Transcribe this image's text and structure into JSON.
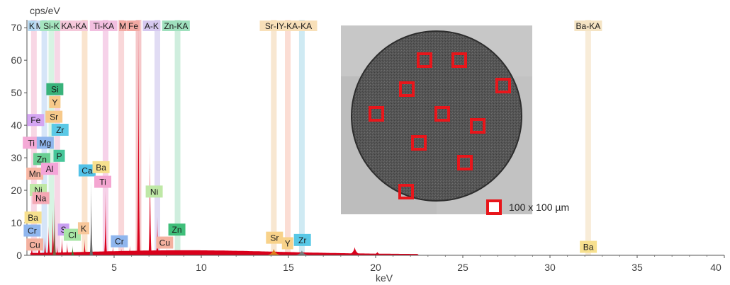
{
  "chart_data": {
    "type": "area",
    "ylabel": "cps/eV",
    "xlabel": "keV",
    "xlim": [
      0,
      40
    ],
    "ylim": [
      0,
      72
    ],
    "x_ticks": [
      5,
      10,
      15,
      20,
      25,
      30,
      35,
      40
    ],
    "y_ticks": [
      0,
      10,
      20,
      30,
      40,
      50,
      60,
      70
    ],
    "grid": false,
    "series_color": "#d9001b",
    "peaks": [
      {
        "keV": 0.28,
        "height": 3.0,
        "color": "#d9001b"
      },
      {
        "keV": 0.7,
        "height": 6.0,
        "color": "#d9001b"
      },
      {
        "keV": 1.04,
        "height": 5.5,
        "color": "#d9001b"
      },
      {
        "keV": 1.25,
        "height": 9.0,
        "color": "#d9001b"
      },
      {
        "keV": 1.49,
        "height": 14.0,
        "color": "#d9001b"
      },
      {
        "keV": 1.58,
        "height": 18.0,
        "color": "#7a5c3c"
      },
      {
        "keV": 1.74,
        "height": 3.0,
        "color": "#d9001b"
      },
      {
        "keV": 2.01,
        "height": 6.0,
        "color": "#d9001b"
      },
      {
        "keV": 2.31,
        "height": 4.0,
        "color": "#d9001b"
      },
      {
        "keV": 2.62,
        "height": 3.0,
        "color": "#3a7d2c"
      },
      {
        "keV": 3.31,
        "height": 5.0,
        "color": "#d9001b"
      },
      {
        "keV": 3.69,
        "height": 23.0,
        "color": "#6b6b6b"
      },
      {
        "keV": 4.47,
        "height": 2.0,
        "color": "#d9001b"
      },
      {
        "keV": 4.51,
        "height": 20.0,
        "color": "#d9001b"
      },
      {
        "keV": 4.93,
        "height": 3.0,
        "color": "#d9001b"
      },
      {
        "keV": 5.41,
        "height": 2.0,
        "color": "#d9001b"
      },
      {
        "keV": 5.9,
        "height": 3.0,
        "color": "#d9001b"
      },
      {
        "keV": 6.4,
        "height": 72.0,
        "color": "#d9001b"
      },
      {
        "keV": 7.06,
        "height": 35.0,
        "color": "#d9001b"
      },
      {
        "keV": 7.48,
        "height": 12.0,
        "color": "#d9001b"
      },
      {
        "keV": 8.04,
        "height": 2.0,
        "color": "#d9001b"
      },
      {
        "keV": 8.64,
        "height": 1.5,
        "color": "#d9001b"
      },
      {
        "keV": 12.9,
        "height": 0.5,
        "color": "#d9001b"
      },
      {
        "keV": 14.16,
        "height": 2.0,
        "color": "#e07b1a"
      },
      {
        "keV": 15.77,
        "height": 1.5,
        "color": "#7a7a7a"
      },
      {
        "keV": 18.8,
        "height": 2.5,
        "color": "#d9001b"
      },
      {
        "keV": 20.1,
        "height": 1.0,
        "color": "#d9001b"
      }
    ],
    "element_lines": [
      {
        "label": "K",
        "keV": 0.4,
        "color": "#f6c9dc"
      },
      {
        "label": "Mg",
        "keV": 1.0,
        "color": "#c8dcf5"
      },
      {
        "label": "Si-KA",
        "keV": 1.4,
        "color": "#c9f0d9"
      },
      {
        "label": "Si-KA-KA",
        "keV": 1.74,
        "color": "#f4c9de"
      },
      {
        "label": "K-KA",
        "keV": 3.31,
        "color": "#f8dbbd"
      },
      {
        "label": "Ti-KA",
        "keV": 4.51,
        "color": "#f3c3e2"
      },
      {
        "label": "M",
        "keV": 5.41,
        "color": "#f7c9cc"
      },
      {
        "label": "Fe",
        "keV": 6.4,
        "color": "#f2b4b7"
      },
      {
        "label": "A-K",
        "keV": 7.48,
        "color": "#d7d0f0"
      },
      {
        "label": "Zn-KA",
        "keV": 8.64,
        "color": "#bfe8d3"
      },
      {
        "label": "Sr-I",
        "keV": 14.16,
        "color": "#f6dfc2"
      },
      {
        "label": "Y-KA",
        "keV": 14.96,
        "color": "#f9d2c5"
      },
      {
        "label": "-KA",
        "keV": 15.77,
        "color": "#bfe3ef"
      },
      {
        "label": "Ba-KA",
        "keV": 32.19,
        "color": "#f5e6cb"
      }
    ],
    "top_labels": [
      {
        "text": "K",
        "keV": 0.28,
        "bg": "#b4d7f0"
      },
      {
        "text": "Mg",
        "keV": 0.85,
        "bg": "#c7dbf3"
      },
      {
        "text": "Si-K",
        "keV": 1.4,
        "bg": "#a6e6c0"
      },
      {
        "text": "KA-KA",
        "keV": 2.7,
        "bg": "#f5c8da"
      },
      {
        "text": "Ti-KA",
        "keV": 4.4,
        "bg": "#f2bfe0"
      },
      {
        "text": "M",
        "keV": 5.5,
        "bg": "#f3a9a3"
      },
      {
        "text": "Fe",
        "keV": 6.1,
        "bg": "#f3a9a3"
      },
      {
        "text": "A-K",
        "keV": 7.15,
        "bg": "#d5c7ef"
      },
      {
        "text": "Zn-KA",
        "keV": 8.55,
        "bg": "#9fe0bd"
      },
      {
        "text": "Sr-IY-KA-KA",
        "keV": 15.0,
        "bg": "#f8e0b9"
      },
      {
        "text": "Ba-KA",
        "keV": 32.19,
        "bg": "#f5e4c4"
      }
    ],
    "element_tags": [
      {
        "text": "Si",
        "keV": 1.6,
        "y": 51,
        "bg": "#38b27a"
      },
      {
        "text": "Y",
        "keV": 1.6,
        "y": 47,
        "bg": "#f7c98a"
      },
      {
        "text": "Sr",
        "keV": 1.55,
        "y": 42.5,
        "bg": "#f7c98a"
      },
      {
        "text": "Fe",
        "keV": 0.5,
        "y": 41.5,
        "bg": "#d5a6f2"
      },
      {
        "text": "Zr",
        "keV": 1.9,
        "y": 38.5,
        "bg": "#5cc9e6"
      },
      {
        "text": "Ti",
        "keV": 0.25,
        "y": 34.5,
        "bg": "#f4a9d6"
      },
      {
        "text": "Mg",
        "keV": 1.05,
        "y": 34.5,
        "bg": "#8fb6ee"
      },
      {
        "text": "Zn",
        "keV": 0.85,
        "y": 29.5,
        "bg": "#69cf93"
      },
      {
        "text": "P",
        "keV": 1.85,
        "y": 30.5,
        "bg": "#45c699"
      },
      {
        "text": "Mn",
        "keV": 0.45,
        "y": 25.0,
        "bg": "#f8b7a4"
      },
      {
        "text": "Al",
        "keV": 1.3,
        "y": 26.5,
        "bg": "#f4a4d8"
      },
      {
        "text": "Ca",
        "keV": 3.45,
        "y": 26.0,
        "bg": "#52c2e8"
      },
      {
        "text": "Ba",
        "keV": 4.25,
        "y": 27.0,
        "bg": "#f7e08e"
      },
      {
        "text": "Ti",
        "keV": 4.35,
        "y": 22.5,
        "bg": "#f4a6d1"
      },
      {
        "text": "Ni",
        "keV": 0.65,
        "y": 20.0,
        "bg": "#bfe8a6"
      },
      {
        "text": "Na",
        "keV": 0.8,
        "y": 17.5,
        "bg": "#f5a8b4"
      },
      {
        "text": "Ni",
        "keV": 7.3,
        "y": 19.5,
        "bg": "#bfe8a6"
      },
      {
        "text": "Ba",
        "keV": 0.35,
        "y": 11.5,
        "bg": "#f7e08e"
      },
      {
        "text": "Cr",
        "keV": 0.3,
        "y": 7.5,
        "bg": "#8fb6ee"
      },
      {
        "text": "S",
        "keV": 2.1,
        "y": 7.8,
        "bg": "#c99ff2"
      },
      {
        "text": "Cl",
        "keV": 2.6,
        "y": 6.2,
        "bg": "#a8e6a6"
      },
      {
        "text": "K",
        "keV": 3.25,
        "y": 8.2,
        "bg": "#f8c79a"
      },
      {
        "text": "Cr",
        "keV": 5.3,
        "y": 4.2,
        "bg": "#8fb6ee"
      },
      {
        "text": "Zn",
        "keV": 8.6,
        "y": 7.8,
        "bg": "#3fbf7a"
      },
      {
        "text": "Cu",
        "keV": 0.45,
        "y": 3.2,
        "bg": "#f4b19f"
      },
      {
        "text": "Cu",
        "keV": 7.9,
        "y": 3.8,
        "bg": "#f4b19f"
      },
      {
        "text": "Sr",
        "keV": 14.2,
        "y": 5.3,
        "bg": "#f8d28a"
      },
      {
        "text": "Y",
        "keV": 14.95,
        "y": 3.6,
        "bg": "#f8d28a"
      },
      {
        "text": "Zr",
        "keV": 15.8,
        "y": 4.6,
        "bg": "#58c8e6"
      },
      {
        "text": "Ba",
        "keV": 32.2,
        "y": 2.5,
        "bg": "#f7e08e"
      }
    ]
  },
  "inset": {
    "legend_label": "100 x 100 µm",
    "marker_color": "#e8161b"
  }
}
